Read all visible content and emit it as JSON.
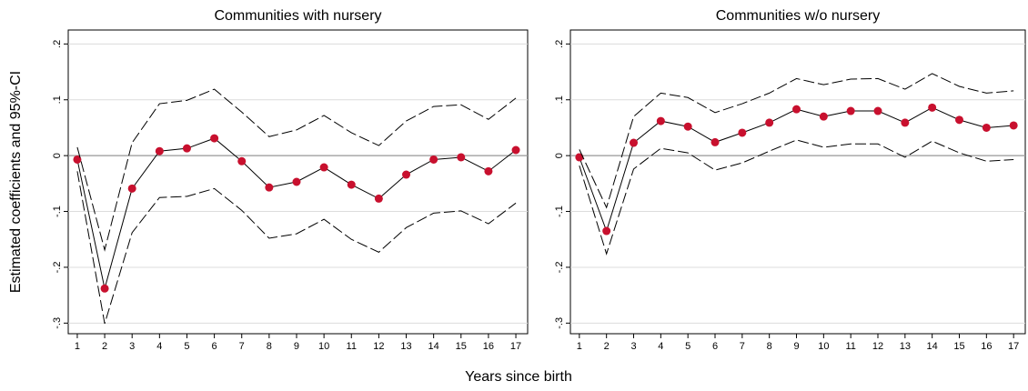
{
  "shared_y_label": "Estimated coefficients and 95%-CI",
  "shared_x_label": "Years since birth",
  "chart_data": [
    {
      "type": "line",
      "title": "Communities with nursery",
      "x": [
        1,
        2,
        3,
        4,
        5,
        6,
        7,
        8,
        9,
        10,
        11,
        12,
        13,
        14,
        15,
        16,
        17
      ],
      "xlim": [
        0.67,
        17.43
      ],
      "xticks": [
        1,
        2,
        3,
        4,
        5,
        6,
        7,
        8,
        9,
        10,
        11,
        12,
        13,
        14,
        15,
        16,
        17
      ],
      "ylim": [
        -0.319,
        0.225
      ],
      "yticks": [
        {
          "value": -0.3,
          "label": "-.3"
        },
        {
          "value": -0.2,
          "label": "-.2"
        },
        {
          "value": -0.1,
          "label": "-.1"
        },
        0,
        {
          "value": 0.1,
          "label": ".1"
        },
        {
          "value": 0.2,
          "label": ".2"
        }
      ],
      "grid": true,
      "reference_line": 0,
      "series": [
        {
          "color": "#c8102e",
          "line_color": "#000000",
          "markers": true,
          "values": [
            -0.007,
            -0.238,
            -0.059,
            0.008,
            0.013,
            0.031,
            -0.01,
            -0.057,
            -0.047,
            -0.021,
            -0.052,
            -0.077,
            -0.034,
            -0.007,
            -0.003,
            -0.028,
            0.01
          ]
        },
        {
          "color": "#000000",
          "dashed": true,
          "values": [
            0.015,
            -0.169,
            0.023,
            0.093,
            0.099,
            0.119,
            0.078,
            0.034,
            0.046,
            0.072,
            0.041,
            0.018,
            0.062,
            0.088,
            0.091,
            0.065,
            0.103
          ]
        },
        {
          "color": "#000000",
          "dashed": true,
          "values": [
            -0.028,
            -0.301,
            -0.138,
            -0.075,
            -0.073,
            -0.059,
            -0.098,
            -0.148,
            -0.14,
            -0.114,
            -0.15,
            -0.173,
            -0.129,
            -0.103,
            -0.099,
            -0.122,
            -0.085
          ]
        }
      ]
    },
    {
      "type": "line",
      "title": "Communities w/o nursery",
      "x": [
        1,
        2,
        3,
        4,
        5,
        6,
        7,
        8,
        9,
        10,
        11,
        12,
        13,
        14,
        15,
        16,
        17
      ],
      "xlim": [
        0.67,
        17.43
      ],
      "xticks": [
        1,
        2,
        3,
        4,
        5,
        6,
        7,
        8,
        9,
        10,
        11,
        12,
        13,
        14,
        15,
        16,
        17
      ],
      "ylim": [
        -0.319,
        0.225
      ],
      "yticks": [
        {
          "value": -0.3,
          "label": "-.3"
        },
        {
          "value": -0.2,
          "label": "-.2"
        },
        {
          "value": -0.1,
          "label": "-.1"
        },
        0,
        {
          "value": 0.1,
          "label": ".1"
        },
        {
          "value": 0.2,
          "label": ".2"
        }
      ],
      "grid": true,
      "reference_line": 0,
      "series": [
        {
          "color": "#c8102e",
          "line_color": "#000000",
          "markers": true,
          "values": [
            -0.003,
            -0.135,
            0.023,
            0.062,
            0.052,
            0.024,
            0.041,
            0.059,
            0.083,
            0.07,
            0.08,
            0.08,
            0.059,
            0.086,
            0.064,
            0.05,
            0.054
          ]
        },
        {
          "color": "#000000",
          "dashed": true,
          "values": [
            0.011,
            -0.093,
            0.07,
            0.112,
            0.104,
            0.077,
            0.093,
            0.112,
            0.138,
            0.127,
            0.137,
            0.138,
            0.119,
            0.147,
            0.124,
            0.112,
            0.116
          ]
        },
        {
          "color": "#000000",
          "dashed": true,
          "values": [
            -0.018,
            -0.176,
            -0.024,
            0.013,
            0.005,
            -0.026,
            -0.013,
            0.008,
            0.028,
            0.015,
            0.021,
            0.021,
            -0.003,
            0.026,
            0.005,
            -0.01,
            -0.007
          ]
        }
      ]
    }
  ]
}
